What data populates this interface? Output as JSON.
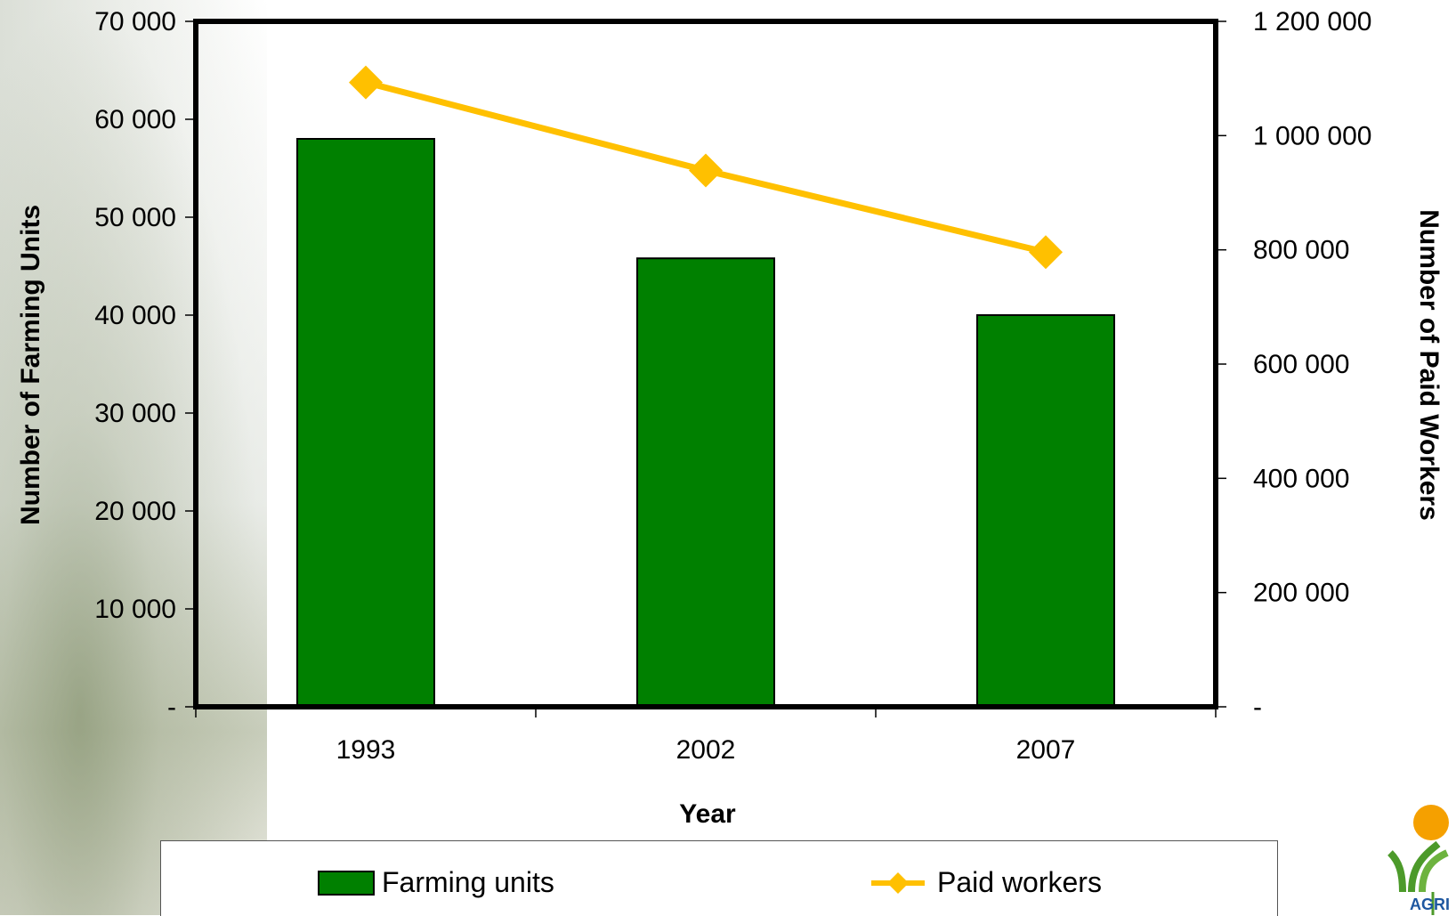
{
  "chart_data": {
    "type": "bar",
    "categories": [
      "1993",
      "2002",
      "2007"
    ],
    "series": [
      {
        "name": "Farming units",
        "type": "bar",
        "axis": "left",
        "color": "#008000",
        "values": [
          58000,
          45800,
          40000
        ]
      },
      {
        "name": "Paid workers",
        "type": "line",
        "axis": "right",
        "color": "#FFC000",
        "values": [
          1093000,
          939000,
          796000
        ]
      }
    ],
    "xlabel": "Year",
    "ylabel": "Number of Farming Units",
    "y2label": "Number of Paid Workers",
    "ylim": [
      0,
      70000
    ],
    "y2lim": [
      0,
      1200000
    ],
    "yticks": [
      "-",
      "10 000",
      "20 000",
      "30 000",
      "40 000",
      "50 000",
      "60 000",
      "70 000"
    ],
    "y2ticks": [
      "-",
      "200 000",
      "400 000",
      "600 000",
      "800 000",
      "1 000 000",
      "1 200 000"
    ],
    "grid": false,
    "legend_position": "bottom"
  },
  "legend": {
    "bar_label": "Farming units",
    "line_label": "Paid workers"
  },
  "logo": {
    "icon": "agri-logo-icon",
    "text": "AGRI S"
  }
}
